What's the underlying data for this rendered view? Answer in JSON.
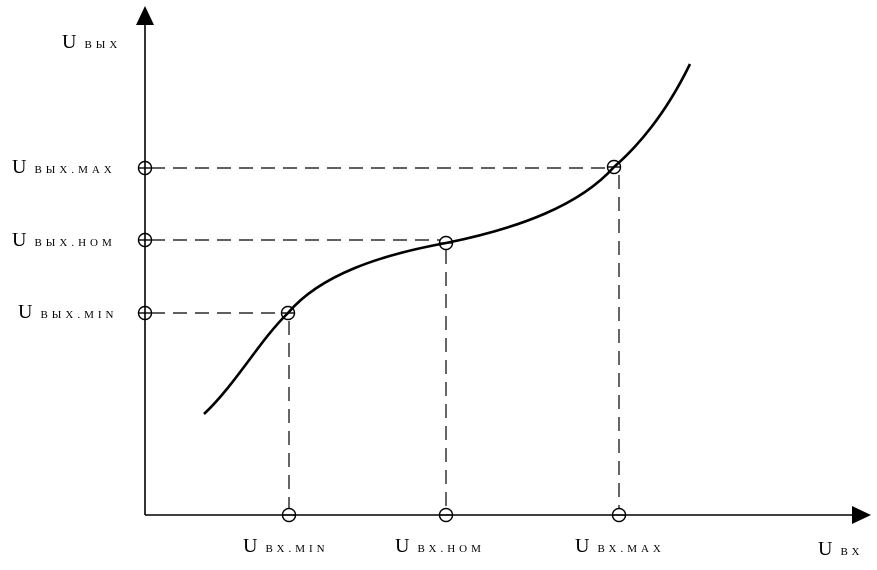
{
  "axes": {
    "y_label": {
      "main": "U",
      "sub": "ВЫХ"
    },
    "x_label": {
      "main": "U",
      "sub": "ВХ"
    }
  },
  "y_ticks": [
    {
      "id": "max",
      "main": "U",
      "sub": "ВЫХ.МАХ"
    },
    {
      "id": "nom",
      "main": "U",
      "sub": "ВЫХ.НОМ"
    },
    {
      "id": "min",
      "main": "U",
      "sub": "ВЫХ.МIN"
    }
  ],
  "x_ticks": [
    {
      "id": "min",
      "main": "U",
      "sub": "ВХ.МIN"
    },
    {
      "id": "nom",
      "main": "U",
      "sub": "ВХ.НОМ"
    },
    {
      "id": "max",
      "main": "U",
      "sub": "ВХ.МАХ"
    }
  ]
}
